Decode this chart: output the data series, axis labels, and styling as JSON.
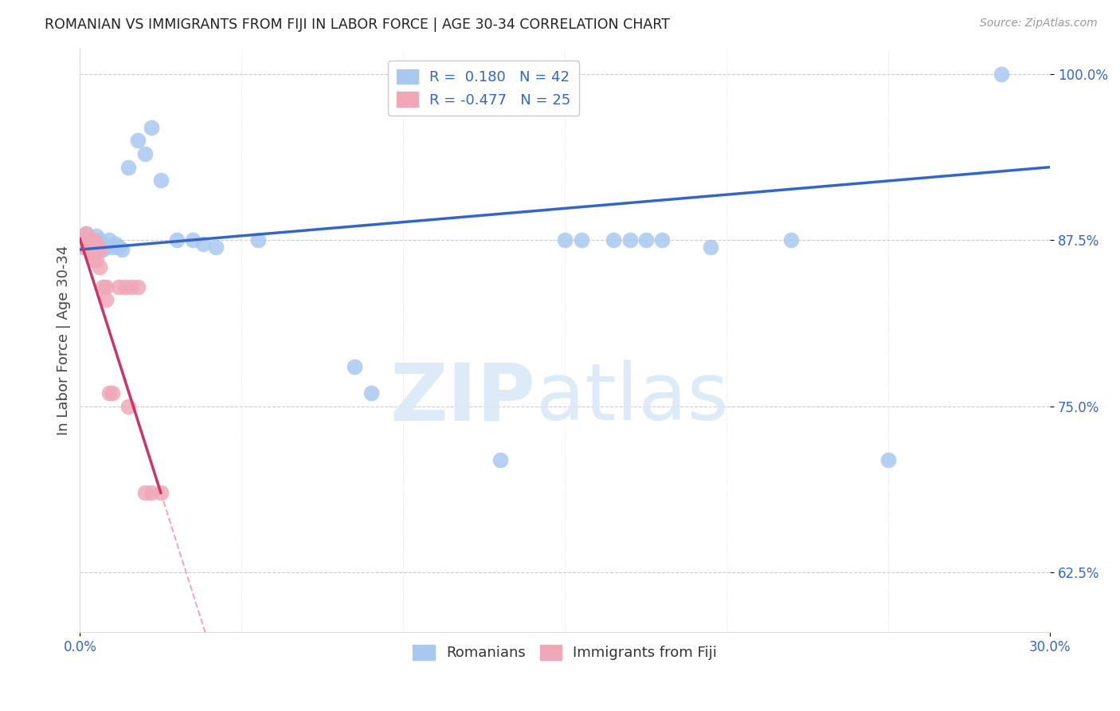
{
  "title": "ROMANIAN VS IMMIGRANTS FROM FIJI IN LABOR FORCE | AGE 30-34 CORRELATION CHART",
  "source": "Source: ZipAtlas.com",
  "ylabel": "In Labor Force | Age 30-34",
  "xlim": [
    0.0,
    0.3
  ],
  "ylim": [
    0.58,
    1.02
  ],
  "yticks": [
    0.625,
    0.75,
    0.875,
    1.0
  ],
  "ytick_labels": [
    "62.5%",
    "75.0%",
    "87.5%",
    "100.0%"
  ],
  "legend_r_romanian": "0.180",
  "legend_n_romanian": "42",
  "legend_r_fiji": "-0.477",
  "legend_n_fiji": "25",
  "romanian_color": "#a8c8f0",
  "fiji_color": "#f0a8b8",
  "line_romanian_color": "#3366cc",
  "line_fiji_color": "#cc3366",
  "line_fiji_dashed_color": "#f0a8b8",
  "background_color": "#ffffff",
  "grid_color": "#cccccc",
  "watermark_zip": "ZIP",
  "watermark_atlas": "atlas",
  "romanians_x": [
    0.001,
    0.002,
    0.002,
    0.003,
    0.003,
    0.004,
    0.004,
    0.005,
    0.005,
    0.006,
    0.006,
    0.007,
    0.007,
    0.008,
    0.009,
    0.01,
    0.011,
    0.012,
    0.013,
    0.015,
    0.018,
    0.02,
    0.022,
    0.025,
    0.03,
    0.035,
    0.038,
    0.042,
    0.055,
    0.085,
    0.09,
    0.13,
    0.15,
    0.155,
    0.165,
    0.17,
    0.175,
    0.18,
    0.195,
    0.22,
    0.25,
    0.285
  ],
  "romanians_y": [
    0.875,
    0.88,
    0.87,
    0.875,
    0.87,
    0.875,
    0.865,
    0.878,
    0.87,
    0.875,
    0.87,
    0.872,
    0.868,
    0.87,
    0.875,
    0.87,
    0.872,
    0.87,
    0.868,
    0.93,
    0.95,
    0.94,
    0.96,
    0.92,
    0.875,
    0.875,
    0.872,
    0.87,
    0.875,
    0.78,
    0.76,
    0.71,
    0.875,
    0.875,
    0.875,
    0.875,
    0.875,
    0.875,
    0.87,
    0.875,
    0.71,
    1.0
  ],
  "fiji_x": [
    0.001,
    0.001,
    0.002,
    0.002,
    0.003,
    0.003,
    0.004,
    0.004,
    0.005,
    0.005,
    0.006,
    0.006,
    0.007,
    0.008,
    0.008,
    0.009,
    0.01,
    0.012,
    0.014,
    0.015,
    0.016,
    0.018,
    0.02,
    0.022,
    0.025
  ],
  "fiji_y": [
    0.875,
    0.87,
    0.88,
    0.87,
    0.875,
    0.868,
    0.875,
    0.86,
    0.872,
    0.86,
    0.868,
    0.855,
    0.84,
    0.84,
    0.83,
    0.76,
    0.76,
    0.84,
    0.84,
    0.75,
    0.84,
    0.84,
    0.685,
    0.685,
    0.685
  ]
}
